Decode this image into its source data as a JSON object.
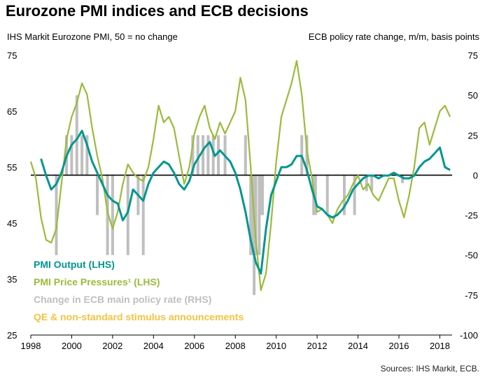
{
  "chart_data": {
    "type": "line",
    "title": "Eurozone PMI indices and ECB decisions",
    "ylabel": "IHS Markit  Eurozone PMI, 50 = no change",
    "y2label": "ECB policy rate change, m/m, basis points",
    "source": "Sources: IHS Markit, ECB.",
    "xlim": [
      1998,
      2018.6
    ],
    "ylim": [
      25,
      75
    ],
    "y2lim": [
      -100,
      75
    ],
    "xticks": [
      "1998",
      "2000",
      "2002",
      "2004",
      "2006",
      "2008",
      "2010",
      "2012",
      "2014",
      "2016",
      "2018"
    ],
    "yticks": [
      "75",
      "65",
      "55",
      "45",
      "35",
      "25"
    ],
    "y2ticks": [
      "75",
      "50",
      "25",
      "0",
      "-25",
      "-50",
      "-75",
      "-100"
    ],
    "grid": false,
    "colors": {
      "output": "#00968f",
      "prices": "#9bbb3b",
      "policy": "#bfbfbf",
      "qe": "#f5c342",
      "zero_line": "#000000"
    },
    "legend": [
      {
        "label": "PMI  Output (LHS)",
        "color": "#00968f"
      },
      {
        "label": "PMI Price Pressures¹ (LHS)",
        "color": "#9bbb3b"
      },
      {
        "label": "Change in ECB main policy rate (RHS)",
        "color": "#bfbfbf"
      },
      {
        "label": "QE & non-standard stimulus announcements",
        "color": "#f5c342"
      }
    ],
    "series": [
      {
        "name": "PMI  Output (LHS)",
        "axis": "left",
        "x": [
          1998.5,
          1998.75,
          1999.0,
          1999.25,
          1999.5,
          1999.75,
          2000.0,
          2000.25,
          2000.5,
          2000.75,
          2001.0,
          2001.25,
          2001.5,
          2001.75,
          2002.0,
          2002.25,
          2002.5,
          2002.75,
          2003.0,
          2003.25,
          2003.5,
          2003.75,
          2004.0,
          2004.25,
          2004.5,
          2004.75,
          2005.0,
          2005.25,
          2005.5,
          2005.75,
          2006.0,
          2006.25,
          2006.5,
          2006.75,
          2007.0,
          2007.25,
          2007.5,
          2007.75,
          2008.0,
          2008.25,
          2008.5,
          2008.75,
          2009.0,
          2009.25,
          2009.5,
          2009.75,
          2010.0,
          2010.25,
          2010.5,
          2010.75,
          2011.0,
          2011.25,
          2011.5,
          2011.75,
          2012.0,
          2012.25,
          2012.5,
          2012.75,
          2013.0,
          2013.25,
          2013.5,
          2013.75,
          2014.0,
          2014.25,
          2014.5,
          2014.75,
          2015.0,
          2015.25,
          2015.5,
          2015.75,
          2016.0,
          2016.25,
          2016.5,
          2016.75,
          2017.0,
          2017.25,
          2017.5,
          2017.75,
          2018.0,
          2018.25,
          2018.5
        ],
        "values": [
          56.5,
          53.5,
          51,
          52,
          54,
          57,
          59,
          60,
          61.5,
          59,
          56,
          54,
          52,
          50,
          49,
          48.5,
          45.5,
          47,
          51,
          50,
          49,
          52,
          54,
          55,
          56,
          55.5,
          54,
          52,
          51,
          52.5,
          55.5,
          57,
          58.5,
          59.5,
          57,
          58,
          57,
          56,
          54,
          51,
          47,
          42,
          38,
          36,
          44,
          50,
          52.5,
          55,
          55,
          55.5,
          57,
          57,
          54.5,
          51,
          48,
          47.5,
          46.5,
          46,
          46.5,
          47.5,
          49,
          51,
          52,
          53,
          53.5,
          53.5,
          53,
          53.5,
          53.5,
          54,
          53.5,
          53,
          53,
          53.5,
          55,
          56,
          56.5,
          57.5,
          58.5,
          55,
          54.5
        ]
      },
      {
        "name": "PMI Price Pressures¹ (LHS)",
        "axis": "left",
        "x": [
          1998.0,
          1998.25,
          1998.5,
          1998.75,
          1999.0,
          1999.25,
          1999.5,
          1999.75,
          2000.0,
          2000.25,
          2000.5,
          2000.75,
          2001.0,
          2001.25,
          2001.5,
          2001.75,
          2002.0,
          2002.25,
          2002.5,
          2002.75,
          2003.0,
          2003.25,
          2003.5,
          2003.75,
          2004.0,
          2004.25,
          2004.5,
          2004.75,
          2005.0,
          2005.25,
          2005.5,
          2005.75,
          2006.0,
          2006.25,
          2006.5,
          2006.75,
          2007.0,
          2007.25,
          2007.5,
          2007.75,
          2008.0,
          2008.25,
          2008.5,
          2008.75,
          2009.0,
          2009.25,
          2009.5,
          2009.75,
          2010.0,
          2010.25,
          2010.5,
          2010.75,
          2011.0,
          2011.25,
          2011.5,
          2011.75,
          2012.0,
          2012.25,
          2012.5,
          2012.75,
          2013.0,
          2013.25,
          2013.5,
          2013.75,
          2014.0,
          2014.25,
          2014.5,
          2014.75,
          2015.0,
          2015.25,
          2015.5,
          2015.75,
          2016.0,
          2016.25,
          2016.5,
          2016.75,
          2017.0,
          2017.25,
          2017.5,
          2017.75,
          2018.0,
          2018.25,
          2018.5
        ],
        "values": [
          56,
          53,
          46,
          42,
          41.5,
          44,
          52,
          60,
          64,
          66.5,
          70,
          68,
          62,
          57,
          53,
          47,
          44,
          47,
          52,
          55.5,
          54,
          53,
          52.5,
          55,
          60,
          66,
          63,
          64,
          62,
          57,
          52,
          55,
          61,
          64,
          66,
          62,
          60,
          63,
          61,
          63,
          65,
          71,
          67,
          55,
          42,
          33,
          36,
          45,
          56,
          64,
          67,
          70,
          74,
          68,
          58,
          53,
          47,
          47.5,
          46.5,
          45,
          47.5,
          49,
          50,
          52,
          53.5,
          51,
          52,
          50,
          49,
          51,
          53,
          53,
          49,
          46,
          50,
          55,
          62,
          63,
          59,
          62,
          65,
          66,
          64
        ]
      },
      {
        "name": "Change in ECB main policy rate (RHS)",
        "axis": "right",
        "type": "bar",
        "x": [
          1999.25,
          1999.75,
          2000.0,
          2000.25,
          2000.5,
          2000.75,
          2001.25,
          2001.75,
          2002.0,
          2002.75,
          2003.25,
          2003.5,
          2005.92,
          2006.17,
          2006.42,
          2006.67,
          2006.92,
          2007.17,
          2007.5,
          2008.5,
          2008.75,
          2008.83,
          2008.92,
          2009.0,
          2009.17,
          2009.25,
          2009.33,
          2011.25,
          2011.5,
          2011.83,
          2011.92,
          2012.5,
          2013.33,
          2013.83,
          2014.42,
          2014.67,
          2016.17
        ],
        "values": [
          -50,
          25,
          25,
          50,
          25,
          25,
          -25,
          -50,
          -50,
          -50,
          -25,
          -50,
          25,
          25,
          25,
          25,
          25,
          25,
          25,
          25,
          -50,
          -50,
          -75,
          -50,
          -50,
          -25,
          -25,
          25,
          25,
          -25,
          -25,
          -25,
          -25,
          -25,
          -10,
          -10,
          -5
        ]
      }
    ]
  }
}
